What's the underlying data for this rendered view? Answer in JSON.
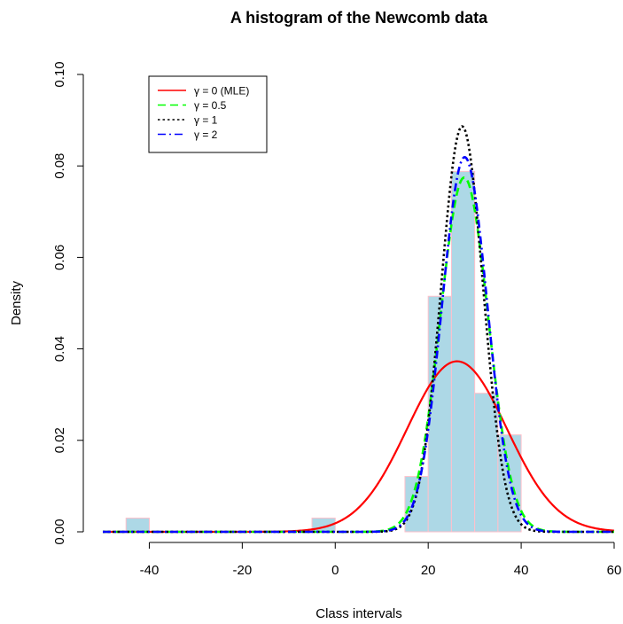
{
  "chart_data": {
    "type": "bar",
    "title": "A histogram of the Newcomb data",
    "xlabel": "Class intervals",
    "ylabel": "Density",
    "xlim": [
      -50,
      60
    ],
    "ylim": [
      0,
      0.1
    ],
    "x_ticks": [
      -40,
      -20,
      0,
      20,
      40,
      60
    ],
    "y_ticks": [
      0.0,
      0.02,
      0.04,
      0.06,
      0.08,
      0.1
    ],
    "x_tick_labels": [
      "-40",
      "-20",
      "0",
      "20",
      "40",
      "60"
    ],
    "y_tick_labels": [
      "0.00",
      "0.02",
      "0.04",
      "0.06",
      "0.08",
      "0.10"
    ],
    "bin_width": 5,
    "bars": [
      {
        "left": -45,
        "right": -40,
        "density": 0.003
      },
      {
        "left": -5,
        "right": 0,
        "density": 0.003
      },
      {
        "left": 15,
        "right": 20,
        "density": 0.0121
      },
      {
        "left": 20,
        "right": 25,
        "density": 0.0515
      },
      {
        "left": 25,
        "right": 30,
        "density": 0.0788
      },
      {
        "left": 30,
        "right": 35,
        "density": 0.0303
      },
      {
        "left": 35,
        "right": 40,
        "density": 0.0212
      }
    ],
    "bar_fill": "#add8e6",
    "bar_border": "#ffc0cb",
    "curves": [
      {
        "name": "γ = 0 (MLE)",
        "mean": 26.2,
        "sd": 10.7,
        "color": "#ff0000",
        "dash": "none",
        "width": 2.2
      },
      {
        "name": "γ = 0.5",
        "mean": 27.75,
        "sd": 5.15,
        "color": "#00ff00",
        "dash": "9,5",
        "width": 2.6
      },
      {
        "name": "γ = 1",
        "mean": 27.3,
        "sd": 4.5,
        "color": "#000000",
        "dash": "2.5,3",
        "width": 2.6
      },
      {
        "name": "γ = 2",
        "mean": 27.85,
        "sd": 4.87,
        "color": "#0000ff",
        "dash": "9,4,2,4",
        "width": 2.6
      }
    ],
    "legend_position": "top-left",
    "grid": false
  }
}
